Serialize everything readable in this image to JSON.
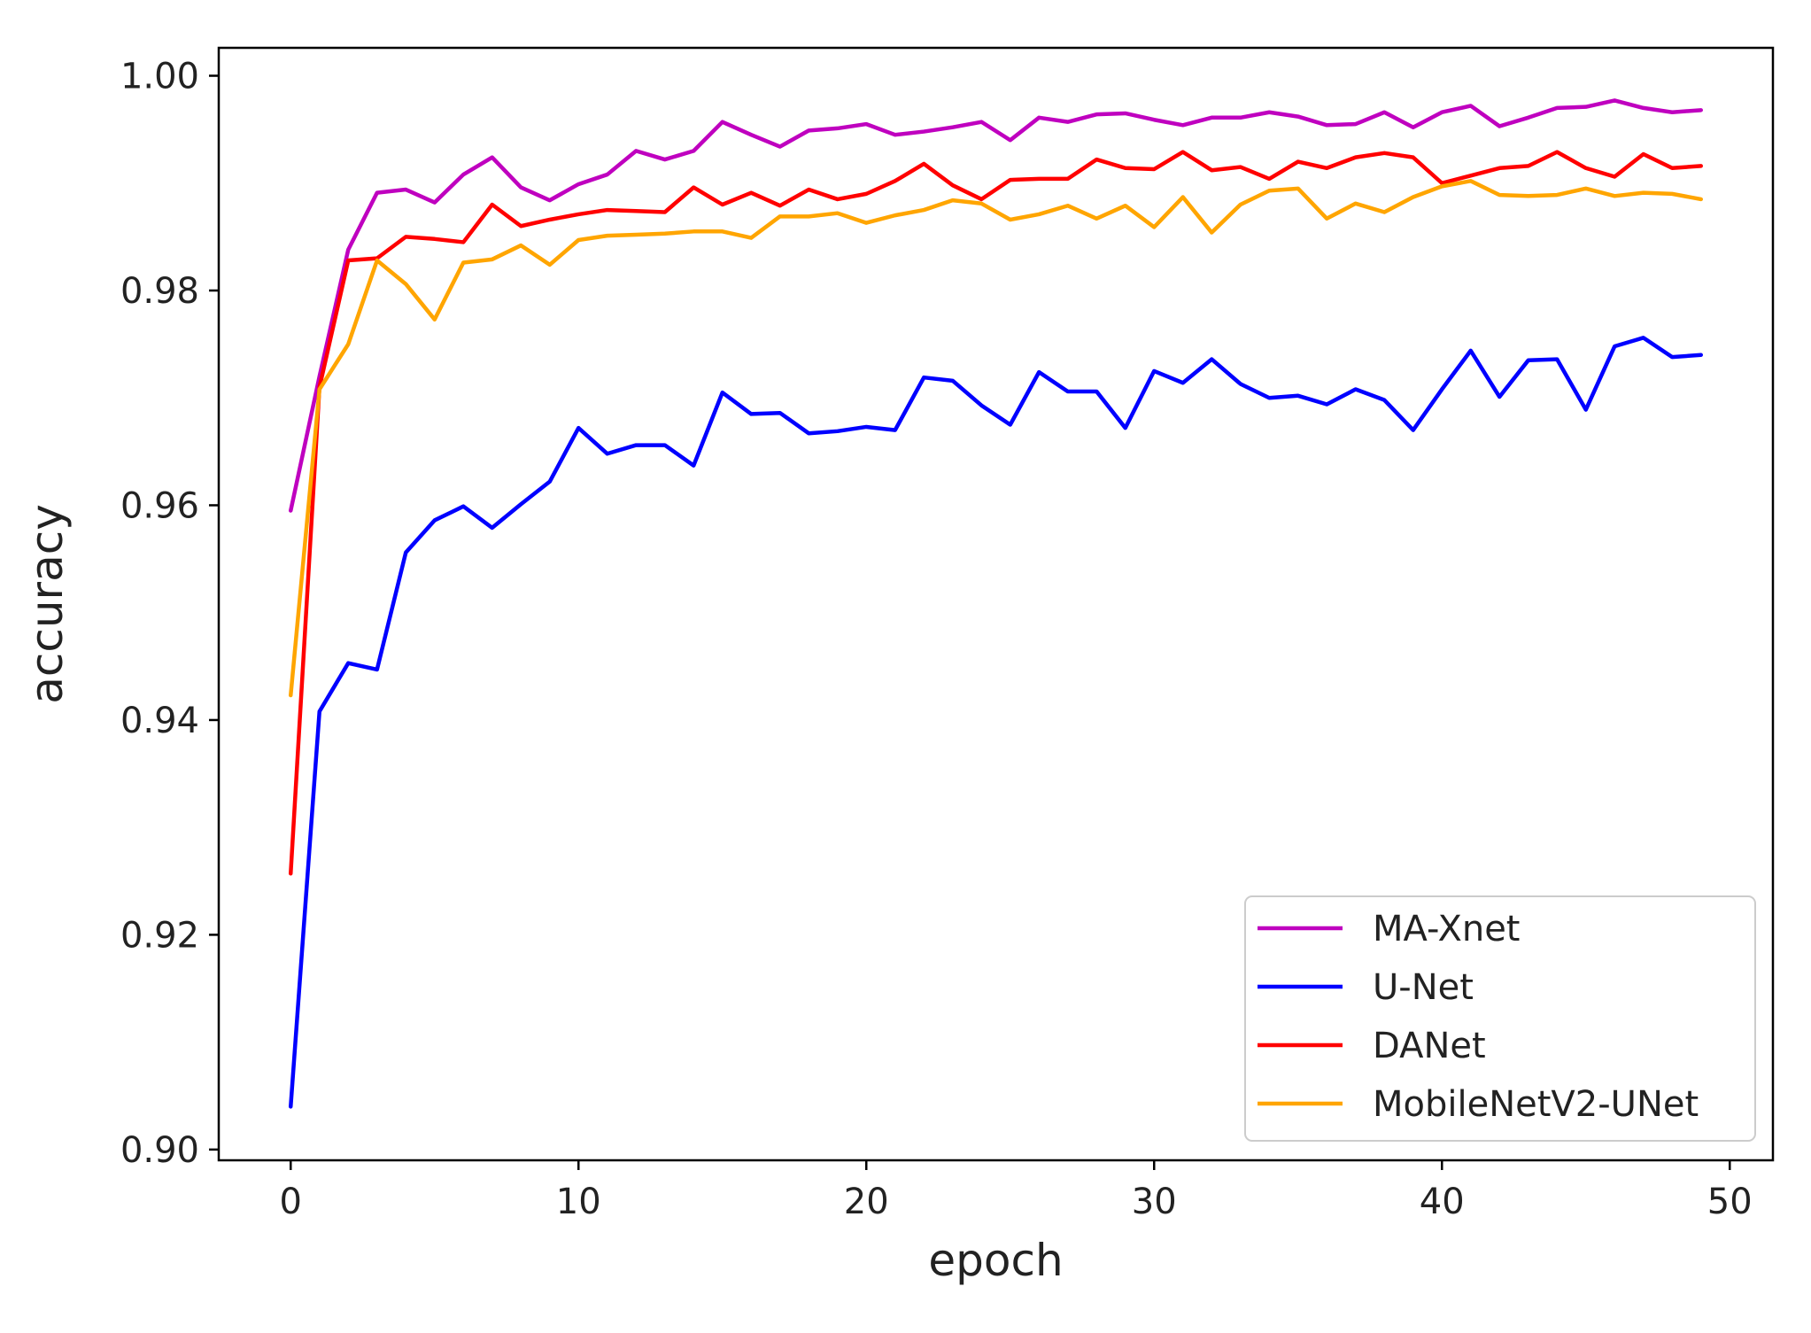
{
  "chart_data": {
    "type": "line",
    "xlabel": "epoch",
    "ylabel": "accuracy",
    "xlim": [
      -2.5,
      51.5
    ],
    "ylim": [
      0.899,
      1.0026
    ],
    "x_ticks": [
      0,
      10,
      20,
      30,
      40,
      50
    ],
    "x_tick_labels": [
      "0",
      "10",
      "20",
      "30",
      "40",
      "50"
    ],
    "y_ticks": [
      0.9,
      0.92,
      0.94,
      0.96,
      0.98,
      1.0
    ],
    "y_tick_labels": [
      "0.90",
      "0.92",
      "0.94",
      "0.96",
      "0.98",
      "1.00"
    ],
    "grid": false,
    "legend_position": "lower-right",
    "x": [
      0,
      1,
      2,
      3,
      4,
      5,
      6,
      7,
      8,
      9,
      10,
      11,
      12,
      13,
      14,
      15,
      16,
      17,
      18,
      19,
      20,
      21,
      22,
      23,
      24,
      25,
      26,
      27,
      28,
      29,
      30,
      31,
      32,
      33,
      34,
      35,
      36,
      37,
      38,
      39,
      40,
      41,
      42,
      43,
      44,
      45,
      46,
      47,
      48,
      49
    ],
    "series": [
      {
        "name": "MA-Xnet",
        "color": "#bf00bf",
        "values": [
          0.9595,
          0.972,
          0.9838,
          0.9891,
          0.9894,
          0.9882,
          0.9908,
          0.9924,
          0.9896,
          0.9884,
          0.9899,
          0.9908,
          0.993,
          0.9922,
          0.993,
          0.9957,
          0.9945,
          0.9934,
          0.9949,
          0.9951,
          0.9955,
          0.9945,
          0.9948,
          0.9952,
          0.9957,
          0.994,
          0.9961,
          0.9957,
          0.9964,
          0.9965,
          0.9959,
          0.9954,
          0.9961,
          0.9961,
          0.9966,
          0.9962,
          0.9954,
          0.9955,
          0.9966,
          0.9952,
          0.9966,
          0.9972,
          0.9953,
          0.9961,
          0.997,
          0.9971,
          0.9977,
          0.997,
          0.9966,
          0.9968
        ]
      },
      {
        "name": "U-Net",
        "color": "#0000ff",
        "values": [
          0.904,
          0.9408,
          0.9453,
          0.9447,
          0.9556,
          0.9586,
          0.9599,
          0.9579,
          0.9601,
          0.9622,
          0.9672,
          0.9648,
          0.9656,
          0.9656,
          0.9637,
          0.9705,
          0.9685,
          0.9686,
          0.9667,
          0.9669,
          0.9673,
          0.967,
          0.9719,
          0.9716,
          0.9693,
          0.9675,
          0.9724,
          0.9706,
          0.9706,
          0.9672,
          0.9725,
          0.9714,
          0.9736,
          0.9713,
          0.97,
          0.9702,
          0.9694,
          0.9708,
          0.9698,
          0.967,
          0.9708,
          0.9744,
          0.9701,
          0.9735,
          0.9736,
          0.9689,
          0.9748,
          0.9756,
          0.9738,
          0.974
        ]
      },
      {
        "name": "DANet",
        "color": "#ff0000",
        "values": [
          0.9257,
          0.971,
          0.9828,
          0.983,
          0.985,
          0.9848,
          0.9845,
          0.988,
          0.986,
          0.9866,
          0.9871,
          0.9875,
          0.9874,
          0.9873,
          0.9896,
          0.988,
          0.9891,
          0.9879,
          0.9894,
          0.9885,
          0.989,
          0.9902,
          0.9918,
          0.9898,
          0.9885,
          0.9903,
          0.9904,
          0.9904,
          0.9922,
          0.9914,
          0.9913,
          0.9929,
          0.9912,
          0.9915,
          0.9904,
          0.992,
          0.9914,
          0.9924,
          0.9928,
          0.9924,
          0.99,
          0.9907,
          0.9914,
          0.9916,
          0.9929,
          0.9914,
          0.9906,
          0.9927,
          0.9914,
          0.9916
        ]
      },
      {
        "name": "MobileNetV2-UNet",
        "color": "#ffa500",
        "values": [
          0.9423,
          0.9708,
          0.975,
          0.9828,
          0.9806,
          0.9773,
          0.9826,
          0.9829,
          0.9842,
          0.9824,
          0.9847,
          0.9851,
          0.9852,
          0.9853,
          0.9855,
          0.9855,
          0.9849,
          0.9869,
          0.9869,
          0.9872,
          0.9863,
          0.987,
          0.9875,
          0.9884,
          0.9881,
          0.9866,
          0.9871,
          0.9879,
          0.9867,
          0.9879,
          0.9859,
          0.9887,
          0.9854,
          0.988,
          0.9893,
          0.9895,
          0.9867,
          0.9881,
          0.9873,
          0.9887,
          0.9897,
          0.9902,
          0.9889,
          0.9888,
          0.9889,
          0.9895,
          0.9888,
          0.9891,
          0.989,
          0.9885
        ]
      }
    ]
  }
}
